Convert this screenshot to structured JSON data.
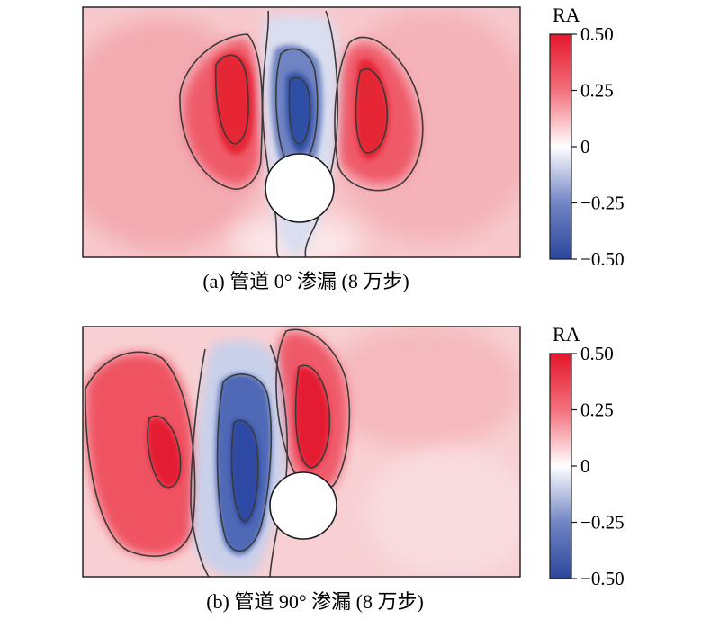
{
  "figure": {
    "panels": [
      {
        "caption": "(a) 管道 0° 渗漏 (8 万步)",
        "colorbar_title": "RA"
      },
      {
        "caption": "(b) 管道 90° 渗漏  (8 万步)",
        "colorbar_title": "RA"
      }
    ]
  },
  "chart_data": [
    {
      "type": "heatmap",
      "title": "",
      "caption": "(a) 管道 0° 渗漏 (8 万步)",
      "colorbar": {
        "label": "RA",
        "range": [
          -0.5,
          0.5
        ],
        "ticks": [
          0.5,
          0.25,
          0,
          -0.25,
          -0.5
        ],
        "tick_labels": [
          "0.50",
          "0.25",
          "0",
          "−0.25",
          "−0.50"
        ],
        "colors": {
          "high": "#e8202f",
          "mid": "#ffffff",
          "low": "#2a4a9e"
        }
      },
      "features": [
        {
          "kind": "negative-core",
          "approx_value": -0.5,
          "location": "above pipe, center"
        },
        {
          "kind": "positive-lobe",
          "approx_value": 0.5,
          "location": "left of center column"
        },
        {
          "kind": "positive-lobe",
          "approx_value": 0.5,
          "location": "right of center column"
        },
        {
          "kind": "pipe",
          "location": "center, lower third"
        }
      ],
      "background_value": 0.1
    },
    {
      "type": "heatmap",
      "title": "",
      "caption": "(b) 管道 90° 渗漏  (8 万步)",
      "colorbar": {
        "label": "RA",
        "range": [
          -0.5,
          0.5
        ],
        "ticks": [
          0.5,
          0.25,
          0,
          -0.25,
          -0.5
        ],
        "tick_labels": [
          "0.50",
          "0.25",
          "0",
          "−0.25",
          "−0.50"
        ],
        "colors": {
          "high": "#e8202f",
          "mid": "#ffffff",
          "low": "#2a4a9e"
        }
      },
      "features": [
        {
          "kind": "negative-core",
          "approx_value": -0.5,
          "location": "left of pipe, tilted column"
        },
        {
          "kind": "positive-lobe",
          "approx_value": 0.5,
          "location": "far left"
        },
        {
          "kind": "positive-lobe",
          "approx_value": 0.5,
          "location": "above-right of pipe"
        },
        {
          "kind": "pipe",
          "location": "center, lower third"
        }
      ],
      "background_value": 0.1
    }
  ]
}
